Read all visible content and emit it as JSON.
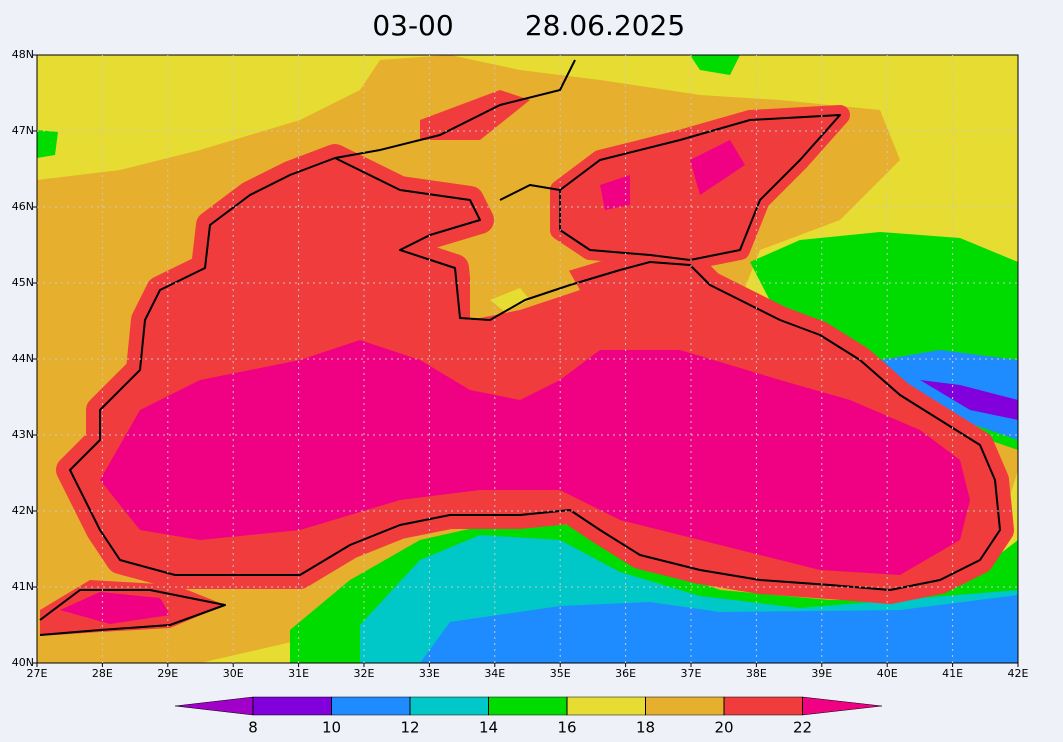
{
  "title": {
    "time": "03-00",
    "date": "28.06.2025"
  },
  "map": {
    "lon_range": [
      27,
      42
    ],
    "lat_range": [
      40,
      48
    ],
    "lon_ticks": [
      {
        "value": 27,
        "label": "27E"
      },
      {
        "value": 28,
        "label": "28E"
      },
      {
        "value": 29,
        "label": "29E"
      },
      {
        "value": 30,
        "label": "30E"
      },
      {
        "value": 31,
        "label": "31E"
      },
      {
        "value": 32,
        "label": "32E"
      },
      {
        "value": 33,
        "label": "33E"
      },
      {
        "value": 34,
        "label": "34E"
      },
      {
        "value": 35,
        "label": "35E"
      },
      {
        "value": 36,
        "label": "36E"
      },
      {
        "value": 37,
        "label": "37E"
      },
      {
        "value": 38,
        "label": "38E"
      },
      {
        "value": 39,
        "label": "39E"
      },
      {
        "value": 40,
        "label": "40E"
      },
      {
        "value": 41,
        "label": "41E"
      },
      {
        "value": 42,
        "label": "42E"
      }
    ],
    "lat_ticks": [
      {
        "value": 40,
        "label": "40N"
      },
      {
        "value": 41,
        "label": "41N"
      },
      {
        "value": 42,
        "label": "42N"
      },
      {
        "value": 43,
        "label": "43N"
      },
      {
        "value": 44,
        "label": "44N"
      },
      {
        "value": 45,
        "label": "45N"
      },
      {
        "value": 46,
        "label": "46N"
      },
      {
        "value": 47,
        "label": "47N"
      },
      {
        "value": 48,
        "label": "48N"
      }
    ],
    "grid": true
  },
  "colorbar": {
    "levels": [
      8,
      10,
      12,
      14,
      16,
      18,
      20,
      22
    ],
    "colors": [
      "#a000c8",
      "#8200dc",
      "#1e8cff",
      "#00c8c8",
      "#00dc00",
      "#e6dc32",
      "#e6af2d",
      "#f03c3c",
      "#f00082"
    ]
  }
}
